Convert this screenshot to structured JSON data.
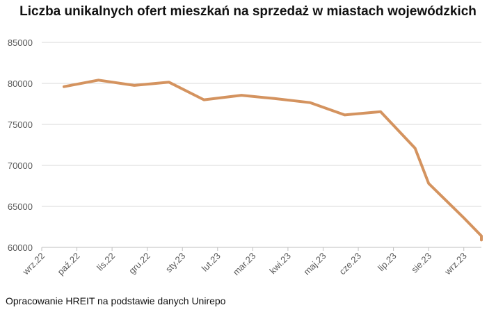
{
  "chart_data": {
    "type": "line",
    "title": "Liczba unikalnych ofert mieszkań na sprzedaż w miastach wojewódzkich",
    "xlabel": "",
    "ylabel": "",
    "categories": [
      "wrz.22",
      "paź.22",
      "lis.22",
      "gru.22",
      "sty.23",
      "lut.23",
      "mar.23",
      "kwi.23",
      "maj.23",
      "cze.23",
      "lip.23",
      "sie.23",
      "wrz.23"
    ],
    "series": [
      {
        "name": "",
        "color": "#d4935f",
        "points": [
          {
            "x": "2022-09-20",
            "y": 79600
          },
          {
            "x": "2022-10-20",
            "y": 80400
          },
          {
            "x": "2022-11-20",
            "y": 79750
          },
          {
            "x": "2022-12-20",
            "y": 80150
          },
          {
            "x": "2023-01-20",
            "y": 78000
          },
          {
            "x": "2023-02-20",
            "y": 78550
          },
          {
            "x": "2023-03-20",
            "y": 78150
          },
          {
            "x": "2023-04-20",
            "y": 77650
          },
          {
            "x": "2023-05-20",
            "y": 76150
          },
          {
            "x": "2023-06-20",
            "y": 76550
          },
          {
            "x": "2023-07-20",
            "y": 72100
          },
          {
            "x": "2023-08-01",
            "y": 67800
          },
          {
            "x": "2023-09-01",
            "y": 63600
          },
          {
            "x": "2023-09-20",
            "y": 61400
          },
          {
            "x": "2023-10-01",
            "y": 60900
          }
        ]
      }
    ],
    "ylim": [
      60000,
      85000
    ],
    "yticks": [
      60000,
      65000,
      70000,
      75000,
      80000,
      85000
    ],
    "grid": true,
    "legend": "none"
  },
  "footer": {
    "source": "Opracowanie HREIT na podstawie danych Unirepo"
  }
}
